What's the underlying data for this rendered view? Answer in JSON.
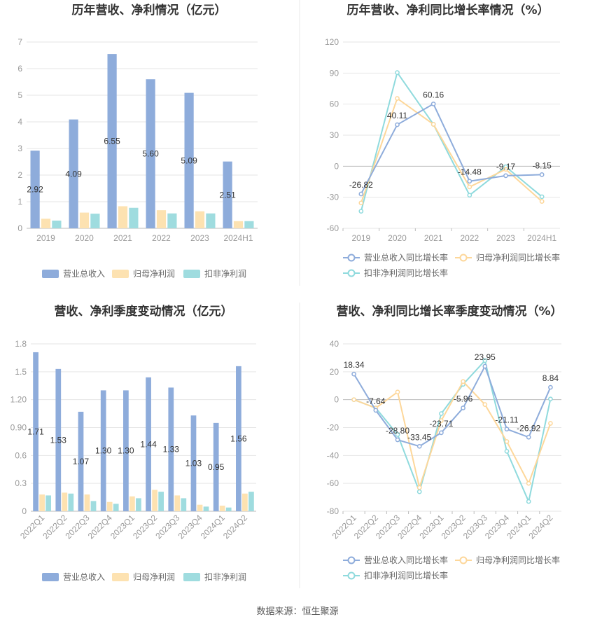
{
  "colors": {
    "revenue": "#8eacdb",
    "net_profit": "#fde2b1",
    "deducted_profit": "#9fdcdf",
    "revenue_line": "#8eacdb",
    "net_profit_line": "#fdd79a",
    "deducted_profit_line": "#8fdadd",
    "grid": "#e6e6e6",
    "axis": "#999999",
    "divider": "#e8e8e8"
  },
  "source_text": "数据来源：恒生聚源",
  "chart_data": [
    {
      "type": "bar",
      "title": "历年营收、净利情况（亿元）",
      "categories": [
        "2019",
        "2020",
        "2021",
        "2022",
        "2023",
        "2024H1"
      ],
      "ylim": [
        0,
        7
      ],
      "yticks": [
        0,
        1,
        2,
        3,
        4,
        5,
        6,
        7
      ],
      "grid": true,
      "legend": "bottom",
      "series": [
        {
          "name": "营业总收入",
          "values": [
            2.92,
            4.09,
            6.55,
            5.6,
            5.09,
            2.51
          ],
          "labels": [
            "2.92",
            "4.09",
            "6.55",
            "5.60",
            "5.09",
            "2.51"
          ]
        },
        {
          "name": "归母净利润",
          "values": [
            0.36,
            0.59,
            0.83,
            0.68,
            0.64,
            0.27
          ]
        },
        {
          "name": "扣非净利润",
          "values": [
            0.29,
            0.55,
            0.77,
            0.56,
            0.56,
            0.27
          ]
        }
      ]
    },
    {
      "type": "line",
      "title": "历年营收、净利同比增长率情况（%）",
      "categories": [
        "2019",
        "2020",
        "2021",
        "2022",
        "2023",
        "2024H1"
      ],
      "ylim": [
        -60,
        120
      ],
      "yticks": [
        -60,
        -30,
        0,
        30,
        60,
        90,
        120
      ],
      "grid": true,
      "legend": "bottom",
      "series": [
        {
          "name": "营业总收入同比增长率",
          "values": [
            -26.82,
            40.11,
            60.16,
            -14.48,
            -9.17,
            -8.15
          ],
          "labels": [
            "-26.82",
            "40.11",
            "60.16",
            "-14.48",
            "-9.17",
            "-8.15"
          ]
        },
        {
          "name": "归母净利润同比增长率",
          "values": [
            -35.5,
            65.5,
            40.5,
            -20.0,
            -3.0,
            -34.0
          ]
        },
        {
          "name": "扣非净利润同比增长率",
          "values": [
            -43.5,
            90.5,
            40.5,
            -28.0,
            -0.5,
            -29.5
          ]
        }
      ]
    },
    {
      "type": "bar",
      "title": "营收、净利季度变动情况（亿元）",
      "categories": [
        "2022Q1",
        "2022Q2",
        "2022Q3",
        "2022Q4",
        "2023Q1",
        "2023Q2",
        "2023Q3",
        "2023Q4",
        "2024Q1",
        "2024Q2"
      ],
      "ylim": [
        0,
        1.8
      ],
      "yticks": [
        0,
        0.3,
        0.6,
        0.9,
        1.2,
        1.5,
        1.8
      ],
      "ytick_labels": [
        "0",
        "0.3",
        "0.6",
        "0.90",
        "1.20",
        "1.5",
        "1.8"
      ],
      "grid": true,
      "legend": "bottom",
      "series": [
        {
          "name": "营业总收入",
          "values": [
            1.71,
            1.53,
            1.07,
            1.3,
            1.3,
            1.44,
            1.33,
            1.03,
            0.95,
            1.56
          ],
          "labels": [
            "1.71",
            "1.53",
            "1.07",
            "1.30",
            "1.30",
            "1.44",
            "1.33",
            "1.03",
            "0.95",
            "1.56"
          ]
        },
        {
          "name": "归母净利润",
          "values": [
            0.18,
            0.2,
            0.18,
            0.1,
            0.16,
            0.23,
            0.17,
            0.07,
            0.06,
            0.19
          ]
        },
        {
          "name": "扣非净利润",
          "values": [
            0.17,
            0.19,
            0.11,
            0.08,
            0.14,
            0.21,
            0.14,
            0.05,
            0.04,
            0.21
          ]
        }
      ]
    },
    {
      "type": "line",
      "title": "营收、净利同比增长率季度变动情况（%）",
      "categories": [
        "2022Q1",
        "2022Q2",
        "2022Q3",
        "2022Q4",
        "2023Q1",
        "2023Q2",
        "2023Q3",
        "2023Q4",
        "2024Q1",
        "2024Q2"
      ],
      "ylim": [
        -80,
        40
      ],
      "yticks": [
        -80,
        -60,
        -40,
        -20,
        0,
        20,
        40
      ],
      "grid": true,
      "legend": "bottom",
      "series": [
        {
          "name": "营业总收入同比增长率",
          "values": [
            18.34,
            -7.64,
            -28.8,
            -33.45,
            -23.71,
            -5.96,
            23.95,
            -21.11,
            -26.92,
            8.84
          ],
          "labels": [
            "18.34",
            "-7.64",
            "-28.80",
            "-33.45",
            "-23.71",
            "-5.96",
            "23.95",
            "-21.11",
            "-26.92",
            "8.84"
          ]
        },
        {
          "name": "归母净利润同比增长率",
          "values": [
            0.0,
            -6.0,
            5.5,
            -63.0,
            -15.0,
            13.0,
            -3.5,
            -30.0,
            -60.0,
            -17.0
          ]
        },
        {
          "name": "扣非净利润同比增长率",
          "values": [
            0.0,
            -6.0,
            -25.0,
            -66.0,
            -10.0,
            11.0,
            28.0,
            -37.0,
            -73.0,
            0.5
          ]
        }
      ]
    }
  ]
}
